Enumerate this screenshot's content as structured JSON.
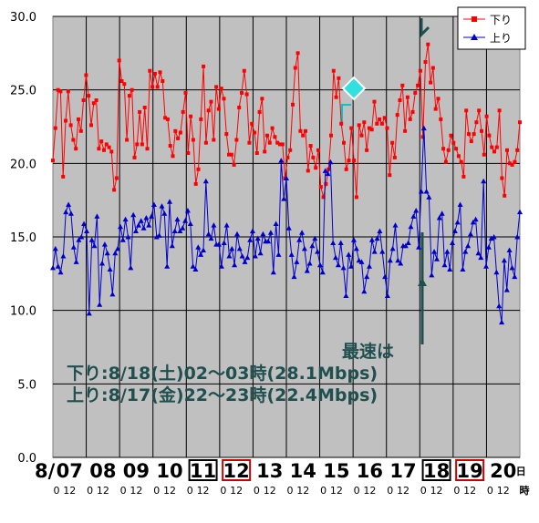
{
  "chart_data": {
    "type": "line",
    "ylim": [
      0,
      30
    ],
    "yticks": [
      "0.0",
      "5.0",
      "10.0",
      "15.0",
      "20.0",
      "25.0",
      "30.0"
    ],
    "days": [
      {
        "label": "07",
        "prefix": "8/",
        "box": null
      },
      {
        "label": "08",
        "box": null
      },
      {
        "label": "09",
        "box": null
      },
      {
        "label": "10",
        "box": null
      },
      {
        "label": "11",
        "box": "#000000"
      },
      {
        "label": "12",
        "box": "#cc0000"
      },
      {
        "label": "13",
        "box": null
      },
      {
        "label": "14",
        "box": null
      },
      {
        "label": "15",
        "box": null
      },
      {
        "label": "16",
        "box": null
      },
      {
        "label": "17",
        "box": null
      },
      {
        "label": "18",
        "box": "#000000"
      },
      {
        "label": "19",
        "box": "#cc0000"
      },
      {
        "label": "20",
        "suffix": "日",
        "box": null
      }
    ],
    "hour_labels": [
      "0",
      "12"
    ],
    "hour_unit": "時",
    "series": [
      {
        "name": "下り",
        "color": "#ff0000",
        "marker": "square",
        "values": [
          20.2,
          22.4,
          25.0,
          24.9,
          19.1,
          22.9,
          24.9,
          22.6,
          21.6,
          21.0,
          23.0,
          22.2,
          24.3,
          26.0,
          24.6,
          22.6,
          24.1,
          24.3,
          21.0,
          21.5,
          20.9,
          21.3,
          21.1,
          20.8,
          18.2,
          19.0,
          27.0,
          25.6,
          25.4,
          21.6,
          24.6,
          25.0,
          20.4,
          21.3,
          23.5,
          21.3,
          23.8,
          21.0,
          26.3,
          25.2,
          26.1,
          25.2,
          26.2,
          25.6,
          23.1,
          23.0,
          21.2,
          20.5,
          22.2,
          21.7,
          22.1,
          23.5,
          24.8,
          20.7,
          23.2,
          21.6,
          18.6,
          19.6,
          23.0,
          26.6,
          21.4,
          23.6,
          24.2,
          21.6,
          25.2,
          23.7,
          25.1,
          24.4,
          22.0,
          20.6,
          20.6,
          19.9,
          21.6,
          23.8,
          24.8,
          26.3,
          24.7,
          21.4,
          22.7,
          22.1,
          20.7,
          23.5,
          24.4,
          20.8,
          21.9,
          21.4,
          22.4,
          21.8,
          21.4,
          21.3,
          21.3,
          19.0,
          20.4,
          20.9,
          24.0,
          26.5,
          27.5,
          22.2,
          21.9,
          22.2,
          19.5,
          21.2,
          20.4,
          19.7,
          20.9,
          18.4,
          17.7,
          18.6,
          19.6,
          21.9,
          26.3,
          24.5,
          25.8,
          22.7,
          21.4,
          19.6,
          20.2,
          22.4,
          20.2,
          17.7,
          22.6,
          21.9,
          22.8,
          20.9,
          22.4,
          22.3,
          24.2,
          22.7,
          23.0,
          22.7,
          23.1,
          22.4,
          19.2,
          21.4,
          20.4,
          23.3,
          24.3,
          25.3,
          22.2,
          24.5,
          23.0,
          23.5,
          24.8,
          25.3,
          26.3,
          21.8,
          26.9,
          28.1,
          25.5,
          26.5,
          23.7,
          24.4,
          23.0,
          21.0,
          20.1,
          20.9,
          21.9,
          21.4,
          21.0,
          20.5,
          20.1,
          19.1,
          23.6,
          22.0,
          21.5,
          22.0,
          22.8,
          23.6,
          22.2,
          20.6,
          23.2,
          21.9,
          21.1,
          20.8,
          21.1,
          23.6,
          19.0,
          17.8,
          20.9,
          20.0,
          19.9,
          20.1,
          20.9,
          22.8
        ]
      },
      {
        "name": "上り",
        "color": "#0000cc",
        "marker": "triangle",
        "values": [
          12.9,
          14.2,
          13.0,
          12.6,
          13.7,
          16.7,
          17.2,
          16.6,
          14.3,
          13.3,
          14.8,
          15.0,
          15.9,
          15.4,
          9.8,
          14.8,
          14.4,
          16.4,
          10.4,
          13.2,
          14.5,
          13.9,
          12.8,
          11.1,
          13.9,
          14.2,
          15.7,
          14.8,
          16.2,
          15.0,
          12.9,
          16.5,
          15.4,
          15.8,
          16.1,
          15.6,
          16.3,
          15.8,
          16.4,
          17.2,
          15.0,
          15.1,
          17.1,
          16.6,
          13.0,
          17.4,
          14.4,
          15.4,
          16.2,
          15.4,
          15.6,
          16.1,
          16.8,
          15.9,
          13.0,
          12.8,
          14.3,
          13.8,
          14.1,
          18.8,
          15.2,
          14.9,
          15.8,
          14.5,
          14.5,
          13.0,
          14.6,
          15.8,
          13.7,
          14.2,
          13.1,
          15.2,
          14.2,
          13.7,
          13.3,
          13.6,
          14.8,
          15.4,
          13.7,
          14.9,
          13.9,
          15.2,
          14.7,
          14.7,
          15.3,
          12.6,
          15.9,
          13.8,
          20.2,
          17.6,
          19.0,
          15.6,
          13.8,
          12.3,
          13.3,
          14.8,
          15.3,
          14.2,
          12.7,
          13.2,
          14.4,
          14.9,
          14.0,
          13.1,
          12.6,
          19.5,
          19.3,
          20.1,
          14.6,
          13.6,
          13.1,
          14.6,
          12.9,
          11.0,
          13.8,
          13.0,
          14.8,
          14.2,
          13.4,
          13.3,
          11.3,
          12.3,
          13.0,
          14.8,
          14.0,
          14.9,
          15.4,
          14.0,
          12.3,
          11.0,
          13.4,
          14.2,
          15.8,
          13.4,
          13.2,
          14.4,
          14.4,
          14.6,
          15.7,
          16.4,
          16.8,
          14.3,
          18.1,
          22.4,
          18.1,
          17.7,
          12.4,
          14.0,
          13.5,
          16.3,
          16.6,
          13.1,
          14.0,
          12.8,
          14.6,
          15.4,
          16.0,
          17.2,
          12.8,
          14.0,
          14.4,
          15.2,
          16.0,
          16.2,
          13.9,
          13.6,
          18.8,
          13.0,
          14.3,
          14.9,
          15.0,
          12.6,
          10.3,
          9.2,
          13.4,
          11.4,
          14.1,
          12.9,
          12.3,
          15.0,
          16.7
        ]
      }
    ],
    "annotations": [
      "最速は",
      "下り:8/18(土)02～03時(28.1Mbps)",
      "上り:8/17(金)22～23時(22.4Mbps)"
    ],
    "legend_position": "top-right",
    "grid": true
  }
}
